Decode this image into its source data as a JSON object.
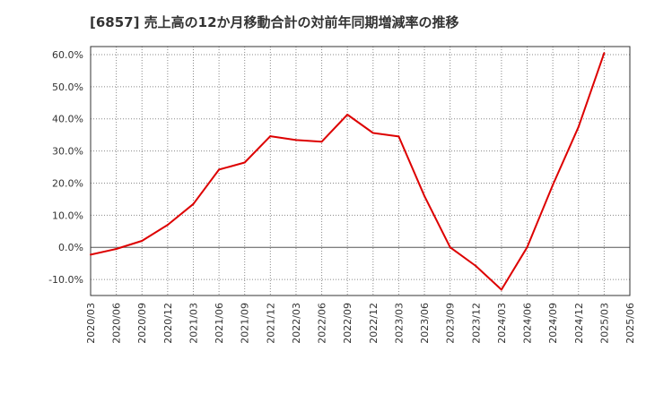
{
  "chart_data": {
    "type": "line",
    "title": "[6857]  売上高の12か月移動合計の対前年同期増減率の推移",
    "xlabel": "",
    "ylabel": "",
    "x": [
      "2020/03",
      "2020/06",
      "2020/09",
      "2020/12",
      "2021/03",
      "2021/06",
      "2021/09",
      "2021/12",
      "2022/03",
      "2022/06",
      "2022/09",
      "2022/12",
      "2023/03",
      "2023/06",
      "2023/09",
      "2023/12",
      "2024/03",
      "2024/06",
      "2024/09",
      "2024/12",
      "2025/03",
      "2025/06"
    ],
    "series": [
      {
        "name": "",
        "color": "#dd0000",
        "values": [
          -2.3,
          -0.5,
          2.0,
          7.0,
          13.5,
          24.2,
          26.4,
          34.6,
          33.4,
          32.9,
          41.3,
          35.6,
          34.5,
          16.0,
          0.0,
          -5.8,
          -13.2,
          0.0,
          19.4,
          37.5,
          60.5,
          null
        ]
      }
    ],
    "ylim": [
      -15,
      62.5
    ],
    "yticks": [
      -10,
      0,
      10,
      20,
      30,
      40,
      50,
      60
    ],
    "ytick_labels": [
      "-10.0%",
      "0.0%",
      "10.0%",
      "20.0%",
      "30.0%",
      "40.0%",
      "50.0%",
      "60.0%"
    ],
    "grid": true,
    "legend": "none"
  }
}
